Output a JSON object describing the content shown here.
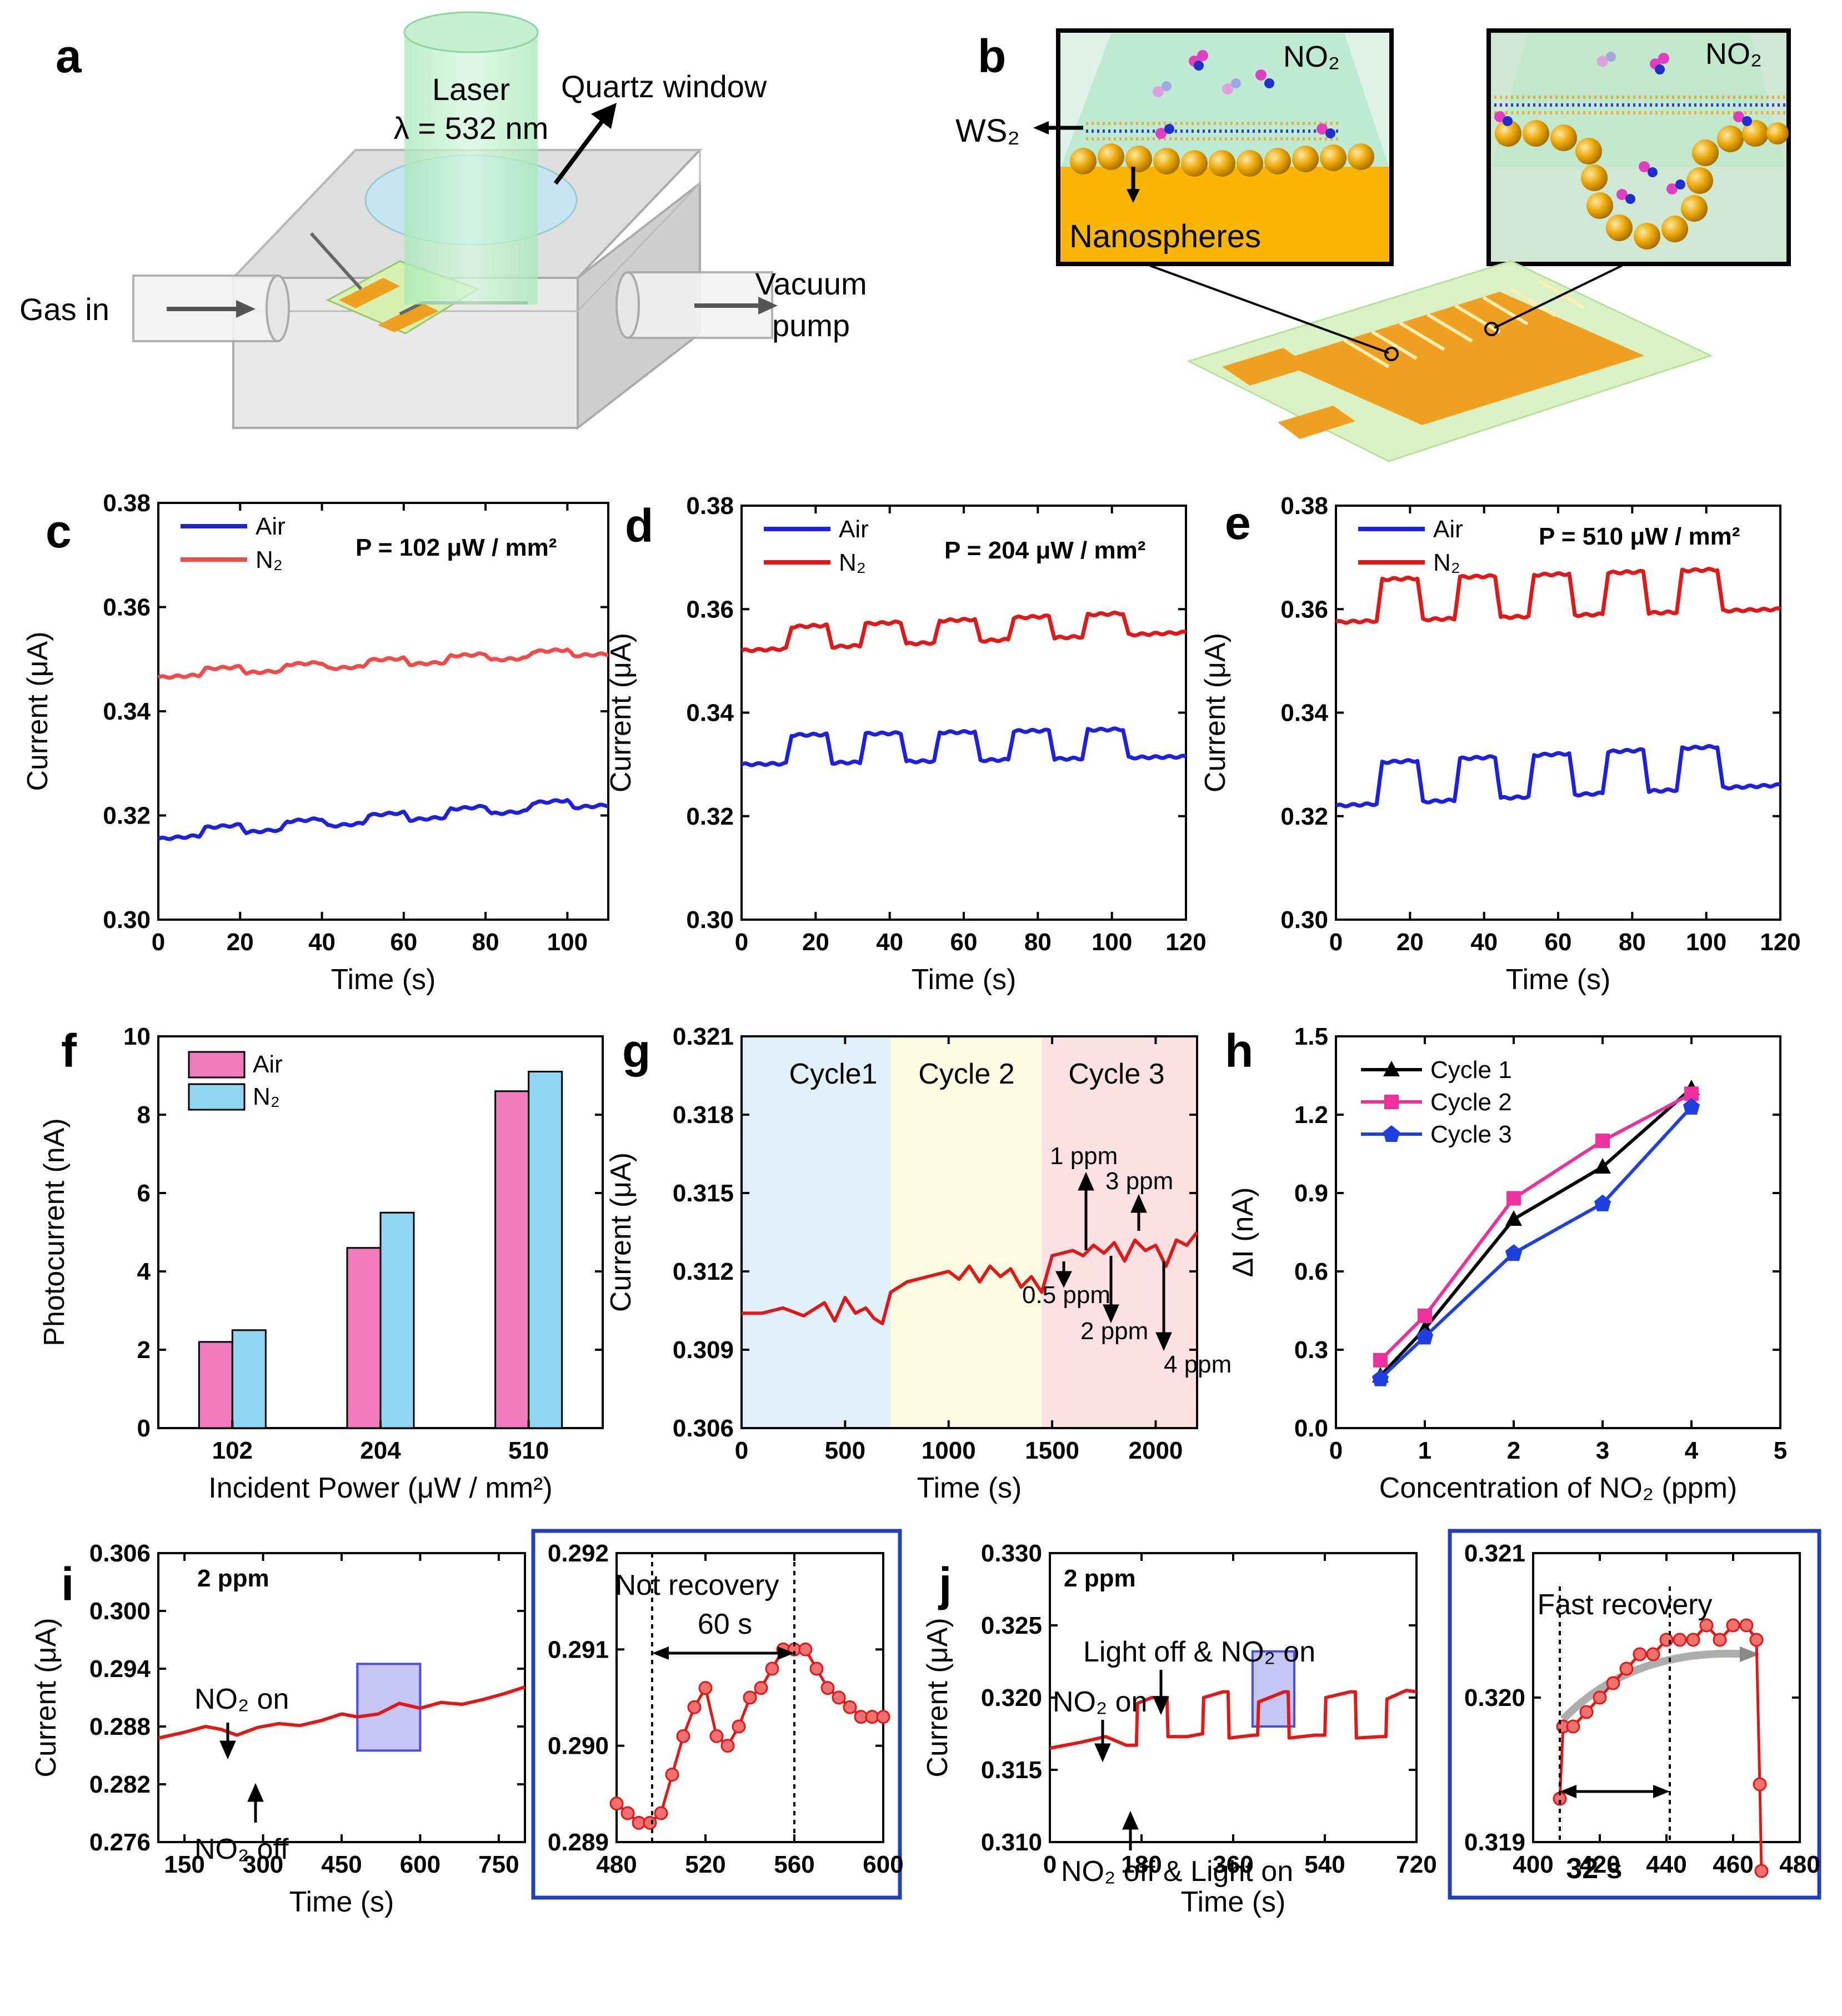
{
  "panels": {
    "a": {
      "letter": "a",
      "laser_line1": "Laser",
      "laser_line2": "λ = 532 nm",
      "quartz": "Quartz window",
      "gas_in": "Gas in",
      "vacuum_line1": "Vacuum",
      "vacuum_line2": "pump"
    },
    "b": {
      "letter": "b",
      "no2_left": "NO₂",
      "no2_right": "NO₂",
      "ws2": "WS₂",
      "nanospheres": "Nanospheres"
    },
    "c": {
      "letter": "c",
      "power": "P = 102 μW / mm²"
    },
    "d": {
      "letter": "d",
      "power": "P = 204 μW / mm²"
    },
    "e": {
      "letter": "e",
      "power": "P = 510 μW / mm²"
    },
    "f": {
      "letter": "f"
    },
    "g": {
      "letter": "g",
      "cycles": [
        "Cycle1",
        "Cycle 2",
        "Cycle 3"
      ],
      "annotations": [
        "1 ppm",
        "3 ppm",
        "0.5 ppm",
        "2 ppm",
        "4 ppm"
      ]
    },
    "h": {
      "letter": "h"
    },
    "i": {
      "letter": "i",
      "conc": "2 ppm",
      "no2_on": "NO₂ on",
      "no2_off": "NO₂ off",
      "inset_title": "Not recovery",
      "inset_dt": "60 s"
    },
    "j": {
      "letter": "j",
      "conc": "2 ppm",
      "light_off": "Light off & NO₂ on",
      "no2_on": "NO₂ on",
      "no2_off": "NO₂ off & Light on",
      "inset_title": "Fast recovery",
      "inset_dt": "32 s"
    }
  },
  "chart_data": [
    {
      "id": "c",
      "type": "line",
      "title": "P = 102 μW / mm²",
      "xlabel": "Time (s)",
      "ylabel": "Current (μA)",
      "xlim": [
        0,
        110
      ],
      "ylim": [
        0.3,
        0.38
      ],
      "xticks": [
        "0",
        "20",
        "40",
        "60",
        "80",
        "100"
      ],
      "yticks": [
        "0.30",
        "0.32",
        "0.34",
        "0.36",
        "0.38"
      ],
      "series": [
        {
          "name": "Air",
          "color": "#1f1fe0",
          "base": 0.3155,
          "drift": 0.0065,
          "amp": 0.0015,
          "on": [
            10,
            30,
            50,
            70,
            90
          ],
          "dur": 10
        },
        {
          "name": "N₂",
          "color": "#f04a4a",
          "base": 0.3465,
          "drift": 0.0045,
          "amp": 0.0012,
          "on": [
            10,
            30,
            50,
            70,
            90
          ],
          "dur": 10
        }
      ]
    },
    {
      "id": "d",
      "type": "line",
      "title": "P = 204 μW / mm²",
      "xlabel": "Time (s)",
      "ylabel": "Current (μA)",
      "xlim": [
        0,
        120
      ],
      "ylim": [
        0.3,
        0.38
      ],
      "xticks": [
        "0",
        "20",
        "40",
        "60",
        "80",
        "100",
        "120"
      ],
      "yticks": [
        "0.30",
        "0.32",
        "0.34",
        "0.36",
        "0.38"
      ],
      "series": [
        {
          "name": "Air",
          "color": "#1f1fe0",
          "base": 0.33,
          "drift": 0.0015,
          "amp": 0.0055,
          "on": [
            12,
            32,
            52,
            72,
            92
          ],
          "dur": 11
        },
        {
          "name": "N₂",
          "color": "#e01818",
          "base": 0.352,
          "drift": 0.0035,
          "amp": 0.0042,
          "on": [
            12,
            32,
            52,
            72,
            92
          ],
          "dur": 11
        }
      ]
    },
    {
      "id": "e",
      "type": "line",
      "title": "P = 510 μW / mm²",
      "xlabel": "Time (s)",
      "ylabel": "Current (μA)",
      "xlim": [
        0,
        120
      ],
      "ylim": [
        0.3,
        0.38
      ],
      "xticks": [
        "0",
        "20",
        "40",
        "60",
        "80",
        "100",
        "120"
      ],
      "yticks": [
        "0.30",
        "0.32",
        "0.34",
        "0.36",
        "0.38"
      ],
      "series": [
        {
          "name": "Air",
          "color": "#1f1fe0",
          "base": 0.322,
          "drift": 0.004,
          "amp": 0.008,
          "on": [
            11,
            32,
            52,
            72,
            92
          ],
          "dur": 11
        },
        {
          "name": "N₂",
          "color": "#e01818",
          "base": 0.3575,
          "drift": 0.0025,
          "amp": 0.008,
          "on": [
            11,
            32,
            52,
            72,
            92
          ],
          "dur": 11
        }
      ]
    },
    {
      "id": "f",
      "type": "bar",
      "xlabel": "Incident Power (μW / mm²)",
      "ylabel": "Photocurrent (nA)",
      "ylim": [
        0,
        10
      ],
      "yticks": [
        "0",
        "2",
        "4",
        "6",
        "8",
        "10"
      ],
      "categories": [
        "102",
        "204",
        "510"
      ],
      "series": [
        {
          "name": "Air",
          "color": "#f27bbf",
          "values": [
            2.2,
            4.6,
            8.6
          ]
        },
        {
          "name": "N₂",
          "color": "#8fd6f2",
          "values": [
            2.5,
            5.5,
            9.1
          ]
        }
      ]
    },
    {
      "id": "g",
      "type": "line",
      "xlabel": "Time (s)",
      "ylabel": "Current (μA)",
      "xlim": [
        0,
        2200
      ],
      "ylim": [
        0.306,
        0.321
      ],
      "xticks": [
        "0",
        "500",
        "1000",
        "1500",
        "2000"
      ],
      "yticks": [
        "0.306",
        "0.309",
        "0.312",
        "0.315",
        "0.318",
        "0.321"
      ],
      "regions": [
        {
          "from": 0,
          "to": 720,
          "color": "#e1f1fb"
        },
        {
          "from": 720,
          "to": 1450,
          "color": "#fbfbe1"
        },
        {
          "from": 1450,
          "to": 2200,
          "color": "#fbe1e3"
        }
      ],
      "series": [
        {
          "name": "Current",
          "color": "#e01818",
          "points": [
            [
              0,
              0.3104
            ],
            [
              100,
              0.3104
            ],
            [
              200,
              0.3106
            ],
            [
              300,
              0.3103
            ],
            [
              400,
              0.3108
            ],
            [
              450,
              0.3101
            ],
            [
              500,
              0.311
            ],
            [
              550,
              0.3104
            ],
            [
              600,
              0.3106
            ],
            [
              640,
              0.3102
            ],
            [
              680,
              0.31
            ],
            [
              720,
              0.3112
            ],
            [
              800,
              0.3116
            ],
            [
              900,
              0.3118
            ],
            [
              1000,
              0.312
            ],
            [
              1050,
              0.3117
            ],
            [
              1100,
              0.3122
            ],
            [
              1150,
              0.3116
            ],
            [
              1200,
              0.3122
            ],
            [
              1250,
              0.3118
            ],
            [
              1300,
              0.3121
            ],
            [
              1350,
              0.3114
            ],
            [
              1400,
              0.3118
            ],
            [
              1450,
              0.3112
            ],
            [
              1500,
              0.3126
            ],
            [
              1600,
              0.3128
            ],
            [
              1650,
              0.3126
            ],
            [
              1700,
              0.313
            ],
            [
              1750,
              0.3127
            ],
            [
              1800,
              0.3131
            ],
            [
              1850,
              0.3124
            ],
            [
              1900,
              0.3132
            ],
            [
              1950,
              0.3128
            ],
            [
              2000,
              0.313
            ],
            [
              2050,
              0.3122
            ],
            [
              2100,
              0.3132
            ],
            [
              2150,
              0.313
            ],
            [
              2200,
              0.3135
            ]
          ]
        }
      ]
    },
    {
      "id": "h",
      "type": "line",
      "xlabel": "Concentration of NO₂ (ppm)",
      "ylabel": "ΔI (nA)",
      "xlim": [
        0,
        5
      ],
      "ylim": [
        0,
        1.5
      ],
      "xticks": [
        "0",
        "1",
        "2",
        "3",
        "4",
        "5"
      ],
      "yticks": [
        "0.0",
        "0.3",
        "0.6",
        "0.9",
        "1.2",
        "1.5"
      ],
      "series": [
        {
          "name": "Cycle 1",
          "color": "#000000",
          "marker": "triangle",
          "x": [
            0.5,
            1,
            2,
            3,
            4
          ],
          "y": [
            0.2,
            0.38,
            0.8,
            1.0,
            1.3
          ]
        },
        {
          "name": "Cycle 2",
          "color": "#ee2f9c",
          "marker": "square",
          "x": [
            0.5,
            1,
            2,
            3,
            4
          ],
          "y": [
            0.26,
            0.43,
            0.88,
            1.1,
            1.28
          ]
        },
        {
          "name": "Cycle 3",
          "color": "#1f3fe0",
          "marker": "pentagon",
          "x": [
            0.5,
            1,
            2,
            3,
            4
          ],
          "y": [
            0.19,
            0.35,
            0.67,
            0.86,
            1.23
          ]
        }
      ]
    },
    {
      "id": "i",
      "type": "line",
      "xlabel": "Time (s)",
      "ylabel": "Current (μA)",
      "xlim": [
        100,
        800
      ],
      "ylim": [
        0.276,
        0.306
      ],
      "xticks": [
        "150",
        "300",
        "450",
        "600",
        "750"
      ],
      "yticks": [
        "0.276",
        "0.282",
        "0.288",
        "0.294",
        "0.300",
        "0.306"
      ],
      "series": [
        {
          "name": "Current",
          "color": "#e01818",
          "points": [
            [
              100,
              0.2868
            ],
            [
              150,
              0.2874
            ],
            [
              190,
              0.288
            ],
            [
              220,
              0.2877
            ],
            [
              250,
              0.2871
            ],
            [
              290,
              0.2879
            ],
            [
              330,
              0.2883
            ],
            [
              370,
              0.2881
            ],
            [
              410,
              0.2886
            ],
            [
              450,
              0.2893
            ],
            [
              480,
              0.289
            ],
            [
              520,
              0.2893
            ],
            [
              560,
              0.2904
            ],
            [
              600,
              0.2899
            ],
            [
              640,
              0.2905
            ],
            [
              680,
              0.2903
            ],
            [
              720,
              0.2908
            ],
            [
              760,
              0.2914
            ],
            [
              800,
              0.2921
            ]
          ]
        }
      ]
    },
    {
      "id": "i-inset",
      "type": "scatter",
      "xlim": [
        480,
        600
      ],
      "ylim": [
        0.289,
        0.292
      ],
      "xticks": [
        "480",
        "520",
        "560",
        "600"
      ],
      "yticks": [
        "0.289",
        "0.290",
        "0.291",
        "0.292"
      ],
      "series": [
        {
          "name": "Current",
          "color": "#e01818",
          "points": [
            [
              480,
              0.2894
            ],
            [
              485,
              0.2893
            ],
            [
              490,
              0.2892
            ],
            [
              495,
              0.2892
            ],
            [
              500,
              0.2893
            ],
            [
              505,
              0.2897
            ],
            [
              510,
              0.2901
            ],
            [
              515,
              0.2904
            ],
            [
              520,
              0.2906
            ],
            [
              525,
              0.2901
            ],
            [
              530,
              0.29
            ],
            [
              535,
              0.2902
            ],
            [
              540,
              0.2905
            ],
            [
              545,
              0.2906
            ],
            [
              550,
              0.2908
            ],
            [
              555,
              0.291
            ],
            [
              560,
              0.291
            ],
            [
              565,
              0.291
            ],
            [
              570,
              0.2908
            ],
            [
              575,
              0.2906
            ],
            [
              580,
              0.2905
            ],
            [
              585,
              0.2904
            ],
            [
              590,
              0.2903
            ],
            [
              595,
              0.2903
            ],
            [
              600,
              0.2903
            ]
          ]
        }
      ]
    },
    {
      "id": "j",
      "type": "line",
      "xlabel": "Time (s)",
      "ylabel": "Current (μA)",
      "xlim": [
        0,
        720
      ],
      "ylim": [
        0.31,
        0.33
      ],
      "xticks": [
        "0",
        "180",
        "360",
        "540",
        "720"
      ],
      "yticks": [
        "0.310",
        "0.315",
        "0.320",
        "0.325",
        "0.330"
      ],
      "series": [
        {
          "name": "Current",
          "color": "#e01818",
          "points": [
            [
              0,
              0.3165
            ],
            [
              60,
              0.3169
            ],
            [
              110,
              0.3173
            ],
            [
              150,
              0.3167
            ],
            [
              170,
              0.3167
            ],
            [
              172,
              0.3196
            ],
            [
              200,
              0.32
            ],
            [
              230,
              0.32
            ],
            [
              232,
              0.3173
            ],
            [
              270,
              0.3173
            ],
            [
              300,
              0.3175
            ],
            [
              302,
              0.32
            ],
            [
              340,
              0.3204
            ],
            [
              350,
              0.3204
            ],
            [
              352,
              0.3172
            ],
            [
              400,
              0.3174
            ],
            [
              408,
              0.3174
            ],
            [
              410,
              0.3197
            ],
            [
              460,
              0.3204
            ],
            [
              468,
              0.3204
            ],
            [
              470,
              0.3172
            ],
            [
              520,
              0.3174
            ],
            [
              540,
              0.3174
            ],
            [
              542,
              0.32
            ],
            [
              590,
              0.3204
            ],
            [
              600,
              0.3204
            ],
            [
              602,
              0.3172
            ],
            [
              650,
              0.3173
            ],
            [
              660,
              0.3173
            ],
            [
              662,
              0.3199
            ],
            [
              700,
              0.3205
            ],
            [
              720,
              0.3204
            ]
          ]
        }
      ]
    },
    {
      "id": "j-inset",
      "type": "scatter",
      "xlim": [
        400,
        480
      ],
      "ylim": [
        0.319,
        0.321
      ],
      "xticks": [
        "400",
        "420",
        "440",
        "460",
        "480"
      ],
      "yticks": [
        "0.319",
        "0.320",
        "0.321"
      ],
      "series": [
        {
          "name": "Current",
          "color": "#e01818",
          "points": [
            [
              408,
              0.3193
            ],
            [
              409,
              0.3198
            ],
            [
              412,
              0.3198
            ],
            [
              416,
              0.3199
            ],
            [
              420,
              0.32
            ],
            [
              424,
              0.3201
            ],
            [
              428,
              0.3202
            ],
            [
              432,
              0.3203
            ],
            [
              436,
              0.3203
            ],
            [
              440,
              0.3204
            ],
            [
              444,
              0.3204
            ],
            [
              448,
              0.3204
            ],
            [
              452,
              0.3205
            ],
            [
              456,
              0.3204
            ],
            [
              460,
              0.3205
            ],
            [
              464,
              0.3205
            ],
            [
              467,
              0.3204
            ],
            [
              468,
              0.3194
            ],
            [
              468.5,
              0.3188
            ]
          ]
        }
      ]
    }
  ]
}
